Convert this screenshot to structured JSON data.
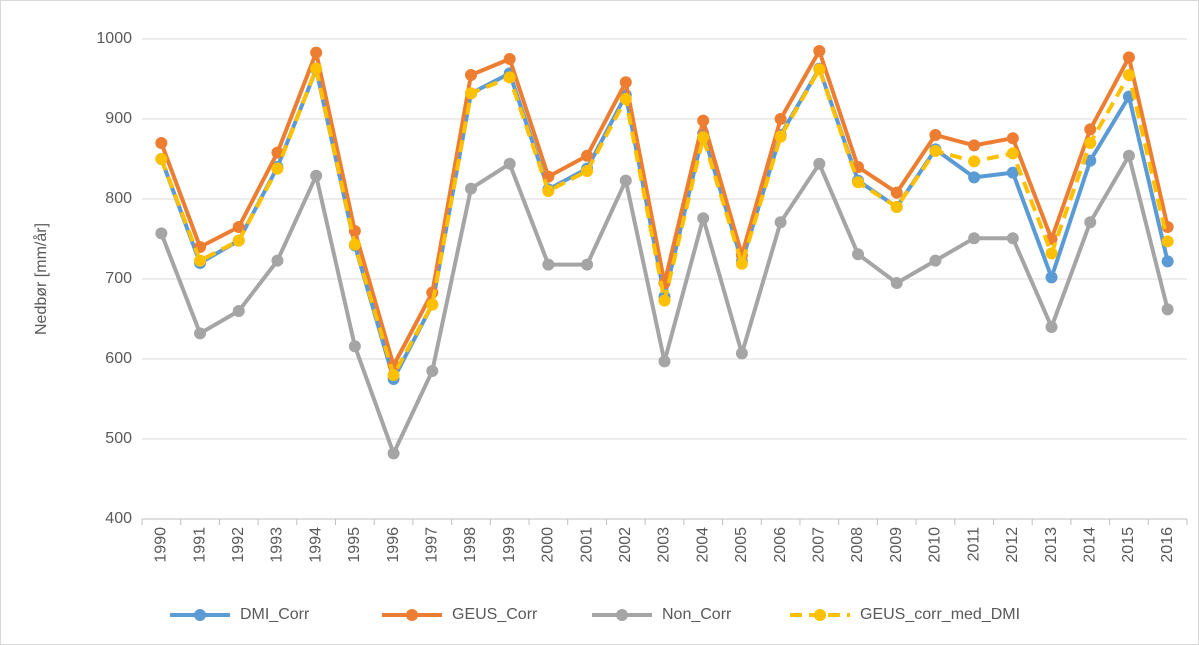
{
  "chart_data": {
    "type": "line",
    "y_label": "Nedbør [mm/år]",
    "categories": [
      "1990",
      "1991",
      "1992",
      "1993",
      "1994",
      "1995",
      "1996",
      "1997",
      "1998",
      "1999",
      "2000",
      "2001",
      "2002",
      "2003",
      "2004",
      "2005",
      "2006",
      "2007",
      "2008",
      "2009",
      "2010",
      "2011",
      "2012",
      "2013",
      "2014",
      "2015",
      "2016"
    ],
    "series": [
      {
        "name": "DMI_Corr",
        "color": "#5b9bd5",
        "dashed": false,
        "values": [
          850,
          720,
          748,
          840,
          962,
          742,
          575,
          668,
          932,
          957,
          812,
          838,
          930,
          678,
          882,
          722,
          880,
          963,
          823,
          790,
          862,
          827,
          833,
          702,
          848,
          928,
          722
        ]
      },
      {
        "name": "GEUS_Corr",
        "color": "#ed7d31",
        "dashed": false,
        "values": [
          870,
          740,
          765,
          858,
          983,
          760,
          592,
          683,
          955,
          975,
          828,
          854,
          946,
          695,
          898,
          730,
          900,
          985,
          840,
          808,
          880,
          867,
          876,
          750,
          887,
          977,
          765
        ]
      },
      {
        "name": "Non_Corr",
        "color": "#a5a5a5",
        "dashed": false,
        "values": [
          757,
          632,
          660,
          723,
          829,
          616,
          482,
          585,
          813,
          844,
          718,
          718,
          823,
          597,
          776,
          607,
          771,
          844,
          731,
          695,
          723,
          751,
          751,
          640,
          771,
          854,
          662
        ]
      },
      {
        "name": "GEUS_corr_med_DMI",
        "color": "#ffc000",
        "dashed": true,
        "values": [
          850,
          723,
          748,
          838,
          963,
          743,
          580,
          668,
          932,
          952,
          810,
          835,
          925,
          673,
          877,
          719,
          878,
          962,
          821,
          790,
          860,
          847,
          857,
          732,
          870,
          955,
          747
        ]
      }
    ],
    "ylim": [
      400,
      1000
    ],
    "yticks": [
      400,
      500,
      600,
      700,
      800,
      900,
      1000
    ],
    "grid": true,
    "legend": "bottom"
  }
}
